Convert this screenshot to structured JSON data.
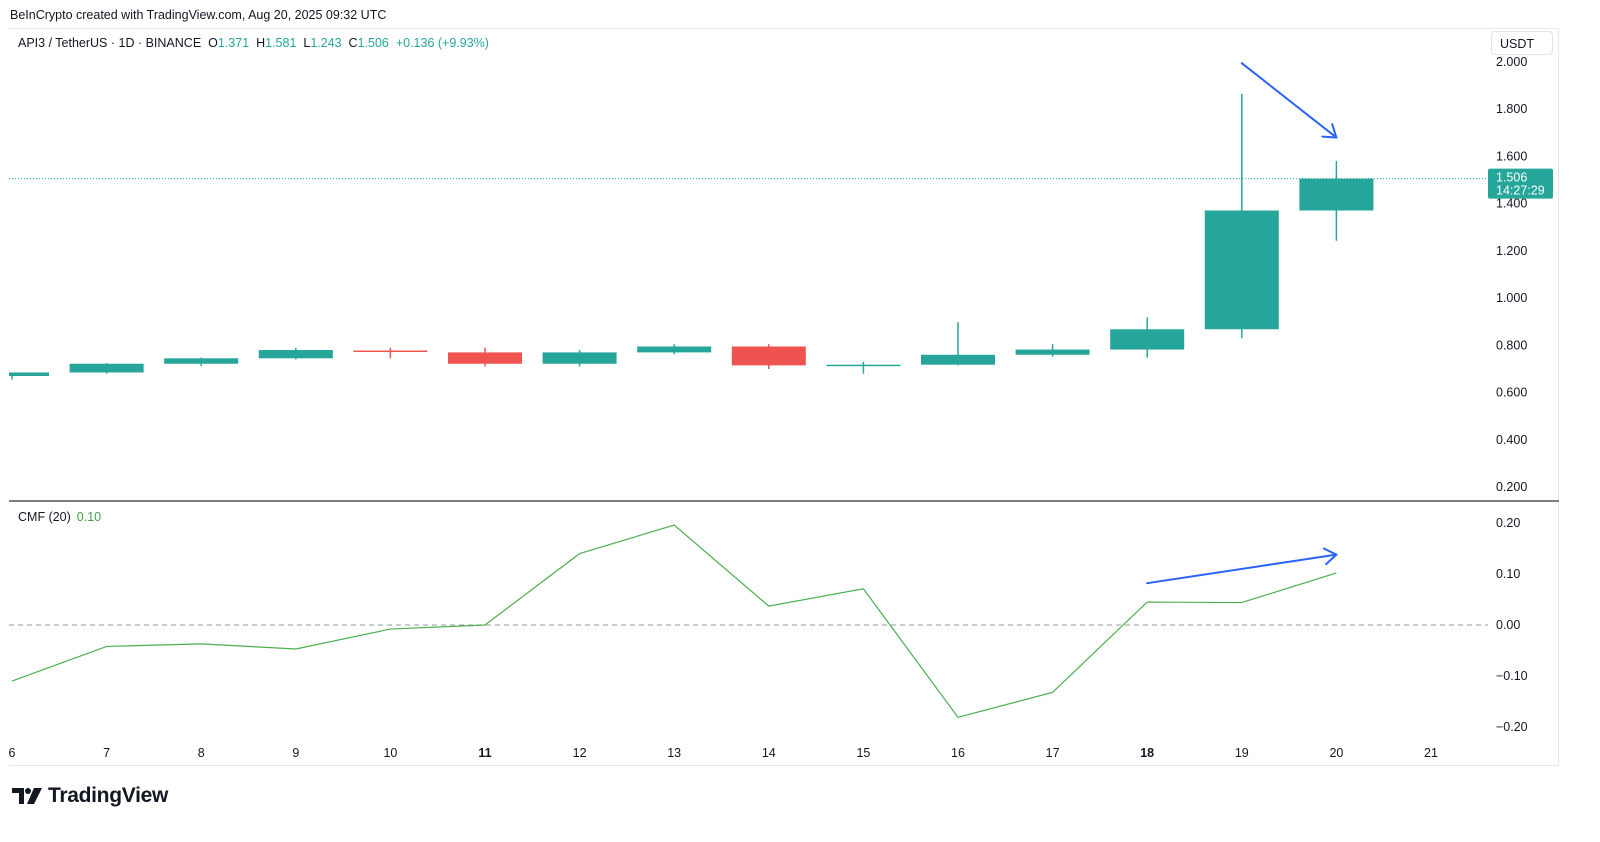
{
  "header": {
    "credit": "BeInCrypto created with TradingView.com, Aug 20, 2025 09:32 UTC"
  },
  "legend": {
    "symbol": "API3 / TetherUS · 1D · BINANCE",
    "o_label": "O",
    "o_value": "1.371",
    "h_label": "H",
    "h_value": "1.581",
    "l_label": "L",
    "l_value": "1.243",
    "c_label": "C",
    "c_value": "1.506",
    "change": "+0.136 (+9.93%)"
  },
  "currency_button": "USDT",
  "last_price": {
    "value": "1.506",
    "countdown": "14:27:29"
  },
  "cmf_legend": {
    "name": "CMF (20)",
    "value": "0.10"
  },
  "footer": {
    "brand": "TradingView"
  },
  "colors": {
    "up": "#26a69a",
    "down": "#ef5350",
    "cmf_line": "#4caf50",
    "annotation": "#2962ff",
    "zero_line": "#9598a1"
  },
  "chart_data": [
    {
      "type": "candlestick",
      "title": "API3 / TetherUS · 1D · BINANCE",
      "xlabel": "",
      "ylabel": "USDT",
      "ylim": [
        0.2,
        2.0
      ],
      "y_ticks": [
        "2.000",
        "1.800",
        "1.600",
        "1.400",
        "1.200",
        "1.000",
        "0.800",
        "0.600",
        "0.400",
        "0.200"
      ],
      "x_ticks": [
        "6",
        "7",
        "8",
        "9",
        "10",
        "11",
        "12",
        "13",
        "14",
        "15",
        "16",
        "17",
        "18",
        "19",
        "20",
        "21"
      ],
      "x_ticks_bold": [
        "11",
        "18"
      ],
      "grid": false,
      "candles": [
        {
          "day": 6,
          "open": 0.67,
          "high": 0.685,
          "low": 0.655,
          "close": 0.685
        },
        {
          "day": 7,
          "open": 0.685,
          "high": 0.725,
          "low": 0.68,
          "close": 0.722
        },
        {
          "day": 8,
          "open": 0.722,
          "high": 0.748,
          "low": 0.712,
          "close": 0.745
        },
        {
          "day": 9,
          "open": 0.745,
          "high": 0.79,
          "low": 0.74,
          "close": 0.78
        },
        {
          "day": 10,
          "open": 0.778,
          "high": 0.79,
          "low": 0.745,
          "close": 0.773
        },
        {
          "day": 11,
          "open": 0.77,
          "high": 0.79,
          "low": 0.71,
          "close": 0.722
        },
        {
          "day": 12,
          "open": 0.722,
          "high": 0.78,
          "low": 0.71,
          "close": 0.77
        },
        {
          "day": 13,
          "open": 0.77,
          "high": 0.805,
          "low": 0.762,
          "close": 0.795
        },
        {
          "day": 14,
          "open": 0.795,
          "high": 0.805,
          "low": 0.7,
          "close": 0.715
        },
        {
          "day": 15,
          "open": 0.715,
          "high": 0.73,
          "low": 0.68,
          "close": 0.718
        },
        {
          "day": 16,
          "open": 0.718,
          "high": 0.898,
          "low": 0.715,
          "close": 0.76
        },
        {
          "day": 17,
          "open": 0.76,
          "high": 0.805,
          "low": 0.752,
          "close": 0.782
        },
        {
          "day": 18,
          "open": 0.782,
          "high": 0.918,
          "low": 0.748,
          "close": 0.868
        },
        {
          "day": 19,
          "open": 0.868,
          "high": 1.865,
          "low": 0.83,
          "close": 1.371
        },
        {
          "day": 20,
          "open": 1.371,
          "high": 1.581,
          "low": 1.243,
          "close": 1.506
        }
      ],
      "last_price_line": 1.506,
      "annotations": [
        {
          "type": "arrow",
          "from_day": 19.0,
          "from_price": 1.995,
          "to_day": 20.0,
          "to_price": 1.68,
          "color": "#2962ff"
        }
      ]
    },
    {
      "type": "line",
      "title": "CMF (20)",
      "ylim": [
        -0.22,
        0.22
      ],
      "y_ticks": [
        "0.20",
        "0.10",
        "0.00",
        "−0.10",
        "−0.20"
      ],
      "zero_line": true,
      "series": [
        {
          "name": "CMF (20)",
          "x": [
            6,
            7,
            8,
            9,
            10,
            11,
            12,
            13,
            14,
            15,
            16,
            17,
            18,
            19,
            20
          ],
          "values": [
            -0.11,
            -0.042,
            -0.037,
            -0.047,
            -0.008,
            0.0,
            0.14,
            0.196,
            0.037,
            0.071,
            -0.181,
            -0.132,
            0.045,
            0.044,
            0.102
          ]
        }
      ],
      "annotations": [
        {
          "type": "arrow",
          "from_day": 18.0,
          "from_value": 0.082,
          "to_day": 20.0,
          "to_value": 0.138,
          "color": "#2962ff"
        }
      ]
    }
  ]
}
